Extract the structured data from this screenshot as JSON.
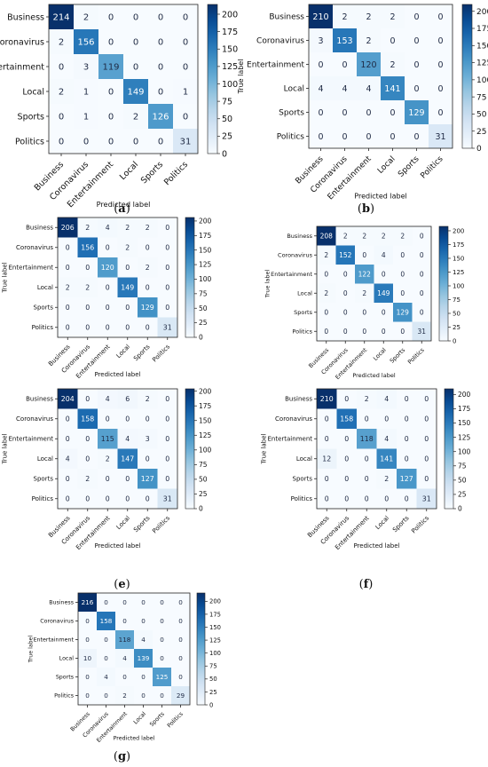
{
  "figure": {
    "panel_labels": [
      "(a)",
      "(b)",
      "(c)",
      "(d)",
      "(e)",
      "(f)",
      "(g)"
    ]
  },
  "chart_data": [
    {
      "type": "heatmap",
      "panel": "(a)",
      "xlabel": "Predicted label",
      "ylabel": "True label",
      "x_categories": [
        "Business",
        "Coronavirus",
        "Entertainment",
        "Local",
        "Sports",
        "Politics"
      ],
      "y_categories": [
        "Business",
        "Coronavirus",
        "Entertainment",
        "Local",
        "Sports",
        "Politics"
      ],
      "values": [
        [
          214,
          2,
          0,
          0,
          0,
          0
        ],
        [
          2,
          156,
          0,
          0,
          0,
          0
        ],
        [
          0,
          3,
          119,
          0,
          0,
          0
        ],
        [
          2,
          1,
          0,
          149,
          0,
          1
        ],
        [
          0,
          1,
          0,
          2,
          126,
          0
        ],
        [
          0,
          0,
          0,
          0,
          0,
          31
        ]
      ],
      "colorbar": {
        "range": [
          0,
          214
        ],
        "ticks": [
          0,
          25,
          50,
          75,
          100,
          125,
          150,
          175,
          200
        ]
      },
      "colormap": {
        "low": "#f7fbff",
        "high": "#08306b"
      },
      "grid": false
    },
    {
      "type": "heatmap",
      "panel": "(b)",
      "xlabel": "Predicted label",
      "ylabel": "True label",
      "x_categories": [
        "Business",
        "Coronavirus",
        "Entertainment",
        "Local",
        "Sports",
        "Politics"
      ],
      "y_categories": [
        "Business",
        "Coronavirus",
        "Entertainment",
        "Local",
        "Sports",
        "Politics"
      ],
      "values": [
        [
          210,
          2,
          2,
          2,
          0,
          0
        ],
        [
          3,
          153,
          2,
          0,
          0,
          0
        ],
        [
          0,
          0,
          120,
          2,
          0,
          0
        ],
        [
          4,
          4,
          4,
          141,
          0,
          0
        ],
        [
          0,
          0,
          0,
          0,
          129,
          0
        ],
        [
          0,
          0,
          0,
          0,
          0,
          31
        ]
      ],
      "colorbar": {
        "range": [
          0,
          210
        ],
        "ticks": [
          0,
          25,
          50,
          75,
          100,
          125,
          150,
          175,
          200
        ]
      },
      "colormap": {
        "low": "#f7fbff",
        "high": "#08306b"
      },
      "grid": false
    },
    {
      "type": "heatmap",
      "panel": "(c)",
      "xlabel": "Predicted label",
      "ylabel": "True label",
      "x_categories": [
        "Business",
        "Coronavirus",
        "Entertainment",
        "Local",
        "Sports",
        "Politics"
      ],
      "y_categories": [
        "Business",
        "Coronavirus",
        "Entertainment",
        "Local",
        "Sports",
        "Politics"
      ],
      "values": [
        [
          206,
          2,
          4,
          2,
          2,
          0
        ],
        [
          0,
          156,
          0,
          2,
          0,
          0
        ],
        [
          0,
          0,
          120,
          0,
          2,
          0
        ],
        [
          2,
          2,
          0,
          149,
          0,
          0
        ],
        [
          0,
          0,
          0,
          0,
          129,
          0
        ],
        [
          0,
          0,
          0,
          0,
          0,
          31
        ]
      ],
      "colorbar": {
        "range": [
          0,
          206
        ],
        "ticks": [
          0,
          25,
          50,
          75,
          100,
          125,
          150,
          175,
          200
        ]
      },
      "colormap": {
        "low": "#f7fbff",
        "high": "#08306b"
      },
      "grid": false
    },
    {
      "type": "heatmap",
      "panel": "(d)",
      "xlabel": "Predicted label",
      "ylabel": "True label",
      "x_categories": [
        "Business",
        "Coronavirus",
        "Entertainment",
        "Local",
        "Sports",
        "Politics"
      ],
      "y_categories": [
        "Business",
        "Coronavirus",
        "Entertainment",
        "Local",
        "Sports",
        "Politics"
      ],
      "values": [
        [
          208,
          2,
          2,
          2,
          2,
          0
        ],
        [
          2,
          152,
          0,
          4,
          0,
          0
        ],
        [
          0,
          0,
          122,
          0,
          0,
          0
        ],
        [
          2,
          0,
          2,
          149,
          0,
          0
        ],
        [
          0,
          0,
          0,
          0,
          129,
          0
        ],
        [
          0,
          0,
          0,
          0,
          0,
          31
        ]
      ],
      "colorbar": {
        "range": [
          0,
          208
        ],
        "ticks": [
          0,
          25,
          50,
          75,
          100,
          125,
          150,
          175,
          200
        ]
      },
      "colormap": {
        "low": "#f7fbff",
        "high": "#08306b"
      },
      "grid": false
    },
    {
      "type": "heatmap",
      "panel": "(e)",
      "xlabel": "Predicted label",
      "ylabel": "True label",
      "x_categories": [
        "Business",
        "Coronavirus",
        "Entertainment",
        "Local",
        "Sports",
        "Politics"
      ],
      "y_categories": [
        "Business",
        "Coronavirus",
        "Entertainment",
        "Local",
        "Sports",
        "Politics"
      ],
      "values": [
        [
          204,
          0,
          4,
          6,
          2,
          0
        ],
        [
          0,
          158,
          0,
          0,
          0,
          0
        ],
        [
          0,
          0,
          115,
          4,
          3,
          0
        ],
        [
          4,
          0,
          2,
          147,
          0,
          0
        ],
        [
          0,
          2,
          0,
          0,
          127,
          0
        ],
        [
          0,
          0,
          0,
          0,
          0,
          31
        ]
      ],
      "colorbar": {
        "range": [
          0,
          204
        ],
        "ticks": [
          0,
          25,
          50,
          75,
          100,
          125,
          150,
          175,
          200
        ]
      },
      "colormap": {
        "low": "#f7fbff",
        "high": "#08306b"
      },
      "grid": false
    },
    {
      "type": "heatmap",
      "panel": "(f)",
      "xlabel": "Predicted label",
      "ylabel": "True label",
      "x_categories": [
        "Business",
        "Coronavirus",
        "Entertainment",
        "Local",
        "Sports",
        "Politics"
      ],
      "y_categories": [
        "Business",
        "Coronavirus",
        "Entertainment",
        "Local",
        "Sports",
        "Politics"
      ],
      "values": [
        [
          210,
          0,
          2,
          4,
          0,
          0
        ],
        [
          0,
          158,
          0,
          0,
          0,
          0
        ],
        [
          0,
          0,
          118,
          4,
          0,
          0
        ],
        [
          12,
          0,
          0,
          141,
          0,
          0
        ],
        [
          0,
          0,
          0,
          2,
          127,
          0
        ],
        [
          0,
          0,
          0,
          0,
          0,
          31
        ]
      ],
      "colorbar": {
        "range": [
          0,
          210
        ],
        "ticks": [
          0,
          25,
          50,
          75,
          100,
          125,
          150,
          175,
          200
        ]
      },
      "colormap": {
        "low": "#f7fbff",
        "high": "#08306b"
      },
      "grid": false
    },
    {
      "type": "heatmap",
      "panel": "(g)",
      "xlabel": "Predicted label",
      "ylabel": "True label",
      "x_categories": [
        "Business",
        "Coronavirus",
        "Entertainment",
        "Local",
        "Sports",
        "Politics"
      ],
      "y_categories": [
        "Business",
        "Coronavirus",
        "Entertainment",
        "Local",
        "Sports",
        "Politics"
      ],
      "values": [
        [
          216,
          0,
          0,
          0,
          0,
          0
        ],
        [
          0,
          158,
          0,
          0,
          0,
          0
        ],
        [
          0,
          0,
          118,
          4,
          0,
          0
        ],
        [
          10,
          0,
          4,
          139,
          0,
          0
        ],
        [
          0,
          4,
          0,
          0,
          125,
          0
        ],
        [
          0,
          0,
          2,
          0,
          0,
          29
        ]
      ],
      "colorbar": {
        "range": [
          0,
          216
        ],
        "ticks": [
          0,
          25,
          50,
          75,
          100,
          125,
          150,
          175,
          200
        ]
      },
      "colormap": {
        "low": "#f7fbff",
        "high": "#08306b"
      },
      "grid": false
    }
  ]
}
